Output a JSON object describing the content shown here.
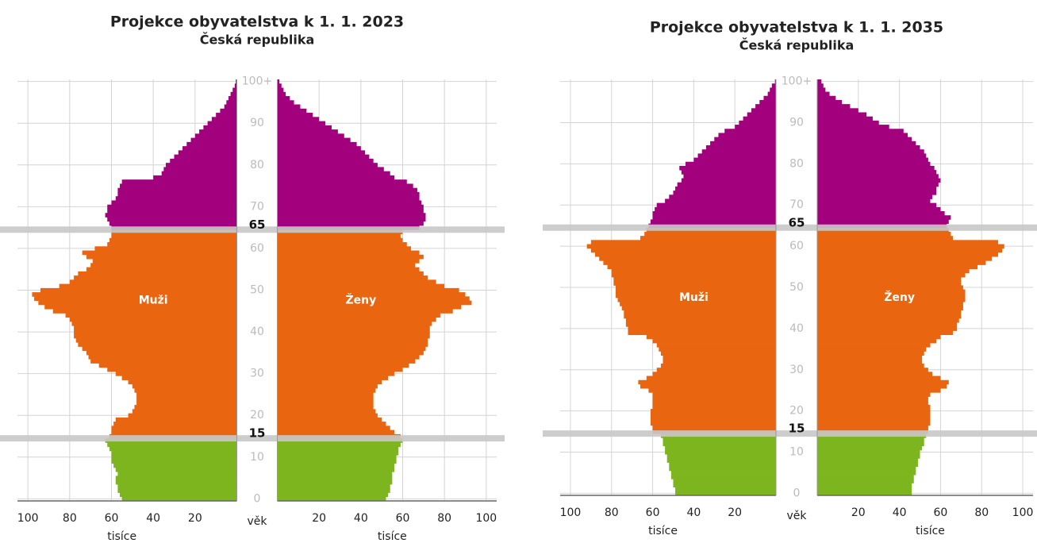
{
  "chart_data": [
    {
      "type": "pyramid",
      "title": "Projekce obyvatelstva k 1. 1. 2023",
      "subtitle": "Česká republika",
      "age_label": "věk",
      "x_label": "tisíce",
      "xlim": [
        0,
        105
      ],
      "xticks": [
        20,
        40,
        60,
        80,
        100
      ],
      "ylim": [
        0,
        101
      ],
      "yticks": [
        0,
        10,
        20,
        30,
        40,
        50,
        60,
        70,
        80,
        90,
        {
          "value": 100,
          "label": "100+"
        }
      ],
      "highlight_ages": [
        15,
        65
      ],
      "band_colors": [
        "#7db51f",
        "#ea6510",
        "#a3007d"
      ],
      "grid": true,
      "series": [
        {
          "name": "Muži",
          "side": "left",
          "values": [
            55,
            56,
            57,
            57,
            58,
            58,
            57,
            58,
            59,
            60,
            60,
            60,
            61,
            62,
            63,
            61,
            60,
            60,
            59,
            58,
            52,
            50,
            49,
            48,
            48,
            48,
            49,
            50,
            52,
            55,
            58,
            62,
            66,
            70,
            71,
            72,
            74,
            76,
            77,
            78,
            78,
            78,
            79,
            80,
            82,
            88,
            92,
            95,
            97,
            98,
            94,
            85,
            80,
            78,
            76,
            72,
            70,
            69,
            72,
            74,
            68,
            62,
            61,
            60,
            60,
            60,
            61,
            62,
            63,
            62,
            62,
            60,
            58,
            57,
            57,
            56,
            55,
            40,
            36,
            35,
            34,
            32,
            30,
            28,
            26,
            24,
            22,
            20,
            18,
            16,
            14,
            12,
            10,
            8,
            6,
            5,
            4,
            3,
            2,
            1,
            0.5
          ]
        },
        {
          "name": "Ženy",
          "side": "right",
          "values": [
            52,
            53,
            54,
            54,
            55,
            55,
            55,
            56,
            56,
            57,
            57,
            58,
            58,
            59,
            60,
            59,
            56,
            54,
            52,
            50,
            48,
            47,
            46,
            46,
            46,
            46,
            47,
            48,
            50,
            53,
            56,
            60,
            63,
            66,
            68,
            70,
            71,
            72,
            72,
            73,
            73,
            73,
            74,
            76,
            78,
            84,
            88,
            93,
            92,
            90,
            87,
            80,
            76,
            72,
            70,
            68,
            66,
            68,
            70,
            68,
            64,
            62,
            60,
            59,
            60,
            68,
            70,
            71,
            71,
            70,
            70,
            69,
            68,
            68,
            67,
            65,
            62,
            56,
            54,
            51,
            48,
            46,
            44,
            42,
            40,
            38,
            35,
            32,
            29,
            26,
            23,
            20,
            17,
            14,
            11,
            8,
            6,
            4,
            3,
            2,
            1
          ]
        }
      ]
    },
    {
      "type": "pyramid",
      "title": "Projekce obyvatelstva k 1. 1. 2035",
      "subtitle": "Česká republika",
      "age_label": "věk",
      "x_label": "tisíce",
      "xlim": [
        0,
        105
      ],
      "xticks": [
        20,
        40,
        60,
        80,
        100
      ],
      "ylim": [
        0,
        101
      ],
      "yticks": [
        0,
        10,
        20,
        30,
        40,
        50,
        60,
        70,
        80,
        90,
        {
          "value": 100,
          "label": "100+"
        }
      ],
      "highlight_ages": [
        15,
        65
      ],
      "band_colors": [
        "#7db51f",
        "#ea6510",
        "#a3007d"
      ],
      "grid": true,
      "series": [
        {
          "name": "Muži",
          "side": "left",
          "values": [
            49,
            49,
            50,
            50,
            51,
            51,
            52,
            52,
            53,
            53,
            54,
            54,
            55,
            55,
            56,
            60,
            60,
            61,
            61,
            61,
            61,
            60,
            60,
            60,
            60,
            62,
            66,
            67,
            63,
            60,
            58,
            56,
            55,
            55,
            56,
            57,
            58,
            60,
            63,
            72,
            72,
            73,
            73,
            74,
            74,
            75,
            76,
            77,
            78,
            78,
            78,
            79,
            79,
            80,
            80,
            82,
            84,
            86,
            88,
            90,
            92,
            90,
            66,
            64,
            63,
            62,
            61,
            60,
            60,
            59,
            58,
            54,
            52,
            50,
            49,
            48,
            46,
            45,
            46,
            47,
            44,
            40,
            38,
            36,
            34,
            32,
            30,
            28,
            25,
            20,
            18,
            16,
            14,
            12,
            10,
            8,
            6,
            4,
            3,
            2,
            0.5
          ]
        },
        {
          "name": "Ženy",
          "side": "right",
          "values": [
            46,
            46,
            46,
            47,
            47,
            48,
            48,
            49,
            49,
            50,
            50,
            51,
            52,
            52,
            53,
            54,
            54,
            55,
            55,
            55,
            55,
            55,
            54,
            54,
            55,
            60,
            63,
            64,
            60,
            56,
            54,
            52,
            51,
            51,
            52,
            53,
            55,
            58,
            60,
            66,
            68,
            68,
            69,
            70,
            70,
            71,
            71,
            72,
            72,
            72,
            71,
            70,
            70,
            72,
            74,
            78,
            82,
            85,
            88,
            90,
            91,
            88,
            66,
            65,
            64,
            63,
            64,
            65,
            62,
            60,
            58,
            55,
            56,
            58,
            58,
            59,
            60,
            59,
            58,
            57,
            55,
            54,
            53,
            52,
            50,
            48,
            46,
            44,
            42,
            35,
            30,
            27,
            24,
            20,
            16,
            12,
            9,
            6,
            4,
            3,
            2
          ]
        }
      ]
    }
  ]
}
